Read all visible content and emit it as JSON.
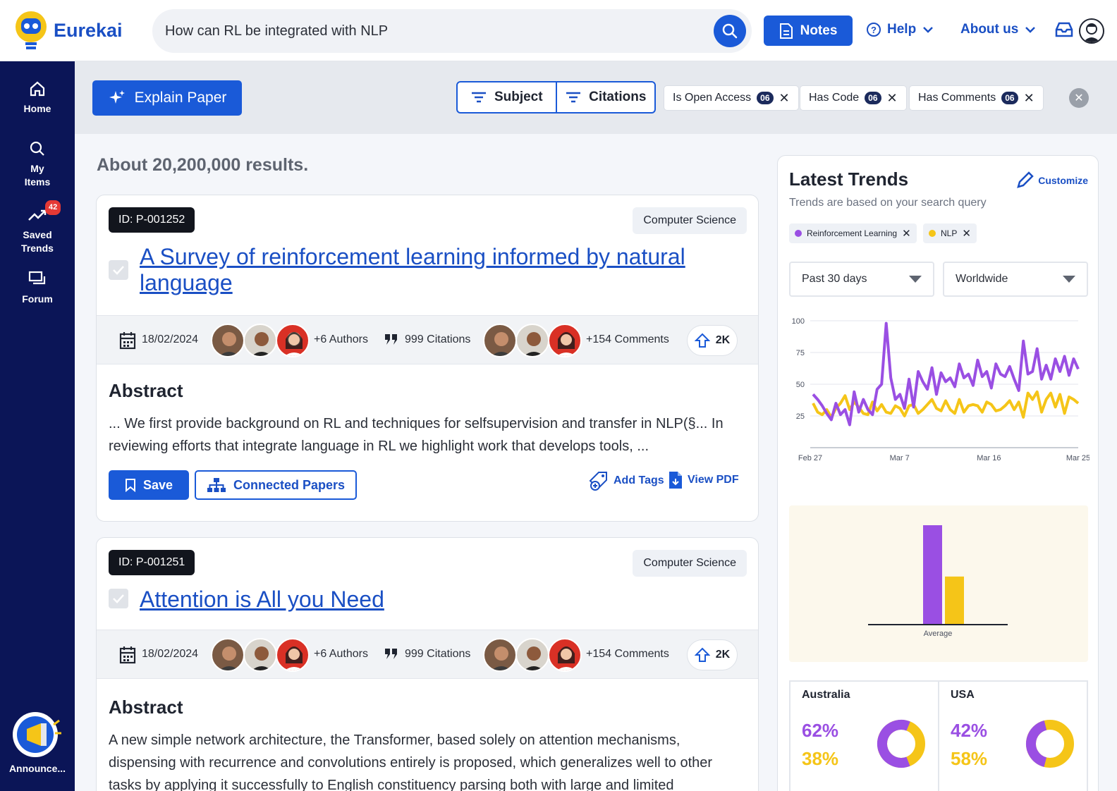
{
  "app": {
    "name": "Eurekai"
  },
  "search": {
    "query": "How can RL be integrated with NLP"
  },
  "header": {
    "notes_label": "Notes",
    "help_label": "Help",
    "about_label": "About us"
  },
  "sidebar": {
    "items": [
      {
        "label": "Home"
      },
      {
        "label": "My Items"
      },
      {
        "label": "Saved Trends",
        "badge": "42"
      },
      {
        "label": "Forum"
      }
    ],
    "announce_label": "Announce..."
  },
  "filters": {
    "explain_label": "Explain Paper",
    "subject_label": "Subject",
    "citations_label": "Citations",
    "chips": [
      {
        "label": "Is Open Access",
        "count": "06"
      },
      {
        "label": "Has Code",
        "count": "06"
      },
      {
        "label": "Has Comments",
        "count": "06"
      }
    ]
  },
  "results": {
    "summary": "About 20,200,000 results."
  },
  "papers": [
    {
      "id": "ID: P-001252",
      "subject": "Computer Science",
      "title": "A Survey of reinforcement learning informed by natural language",
      "date": "18/02/2024",
      "authors": "+6 Authors",
      "citations": "999 Citations",
      "comments": "+154 Comments",
      "votes": "2K",
      "abstract_heading": "Abstract",
      "abstract": "... We first provide background on RL and techniques for selfsupervision and transfer in NLP(§... In reviewing efforts that integrate language in RL we highlight work that develops tools, ...",
      "save_label": "Save",
      "connected_label": "Connected Papers",
      "add_tags_label": "Add Tags",
      "view_pdf_label": "View PDF"
    },
    {
      "id": "ID: P-001251",
      "subject": "Computer Science",
      "title": "Attention is All you Need",
      "date": "18/02/2024",
      "authors": "+6 Authors",
      "citations": "999 Citations",
      "comments": "+154 Comments",
      "votes": "2K",
      "abstract_heading": "Abstract",
      "abstract": "A new simple network architecture, the Transformer, based solely on attention mechanisms, dispensing with recurrence and convolutions entirely is proposed, which generalizes well to other tasks by applying it successfully to English constituency parsing both with large and limited"
    }
  ],
  "trends": {
    "title": "Latest Trends",
    "subtitle": "Trends are based on  your search query",
    "customize_label": "Customize",
    "keywords": [
      {
        "label": "Reinforcement Learning",
        "color": "#9a4fe3"
      },
      {
        "label": "NLP",
        "color": "#f5c518"
      }
    ],
    "period": "Past 30 days",
    "region": "Worldwide",
    "regions": [
      {
        "name": "Australia",
        "rl_pct": "62%",
        "nlp_pct": "38%",
        "rl_share": 0.62
      },
      {
        "name": "USA",
        "rl_pct": "42%",
        "nlp_pct": "58%",
        "rl_share": 0.42
      }
    ]
  },
  "chart_data": [
    {
      "type": "line",
      "x_ticks": [
        "Feb 27",
        "Mar 7",
        "Mar 16",
        "Mar 25"
      ],
      "y_ticks": [
        100,
        75,
        50,
        25
      ],
      "ylim": [
        0,
        100
      ],
      "grid": true,
      "series": [
        {
          "name": "Reinforcement Learning",
          "color": "#9a4fe3",
          "values": [
            42,
            38,
            33,
            27,
            22,
            35,
            26,
            30,
            18,
            44,
            28,
            38,
            30,
            26,
            46,
            50,
            98,
            55,
            38,
            42,
            31,
            54,
            32,
            60,
            52,
            46,
            63,
            42,
            59,
            52,
            55,
            48,
            66,
            55,
            58,
            49,
            69,
            56,
            60,
            47,
            66,
            58,
            56,
            64,
            54,
            45,
            84,
            58,
            60,
            78,
            54,
            65,
            54,
            70,
            60,
            72,
            57,
            70,
            62
          ]
        },
        {
          "name": "NLP",
          "color": "#f5c518",
          "values": [
            35,
            28,
            26,
            30,
            24,
            31,
            35,
            41,
            30,
            36,
            32,
            27,
            26,
            36,
            29,
            34,
            28,
            27,
            33,
            31,
            25,
            33,
            34,
            27,
            30,
            34,
            38,
            31,
            29,
            37,
            30,
            27,
            38,
            28,
            33,
            34,
            33,
            28,
            36,
            34,
            29,
            30,
            33,
            37,
            30,
            36,
            24,
            43,
            38,
            44,
            28,
            38,
            43,
            32,
            42,
            27,
            40,
            38,
            35
          ]
        }
      ]
    },
    {
      "type": "bar",
      "categories": [
        "Average"
      ],
      "series": [
        {
          "name": "Reinforcement Learning",
          "color": "#9a4fe3",
          "values": [
            100
          ]
        },
        {
          "name": "NLP",
          "color": "#f5c518",
          "values": [
            48
          ]
        }
      ],
      "ylim": [
        0,
        100
      ]
    }
  ]
}
